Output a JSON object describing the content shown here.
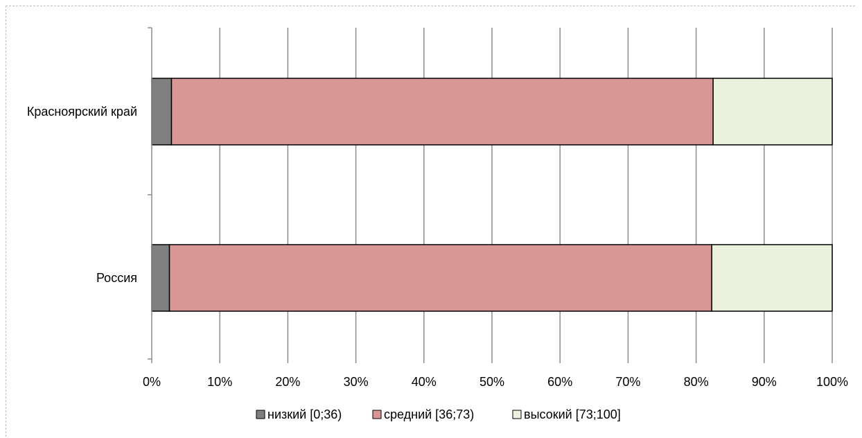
{
  "chart_data": {
    "type": "bar",
    "orientation": "horizontal",
    "stacked": "percent",
    "categories": [
      "Россия",
      "Красноярский край"
    ],
    "series": [
      {
        "name": "низкий [0;36)",
        "color": "#808080",
        "values": [
          2.6,
          2.9
        ]
      },
      {
        "name": "средний [36;73)",
        "color": "#d99694",
        "values": [
          79.7,
          79.6
        ]
      },
      {
        "name": "высокий [73;100]",
        "color": "#ebf1de",
        "values": [
          17.7,
          17.5
        ]
      }
    ],
    "xlim": [
      0,
      100
    ],
    "x_ticks": [
      "0%",
      "10%",
      "20%",
      "30%",
      "40%",
      "50%",
      "60%",
      "70%",
      "80%",
      "90%",
      "100%"
    ],
    "grid": true,
    "legend_position": "bottom",
    "title": "",
    "xlabel": "",
    "ylabel": ""
  }
}
